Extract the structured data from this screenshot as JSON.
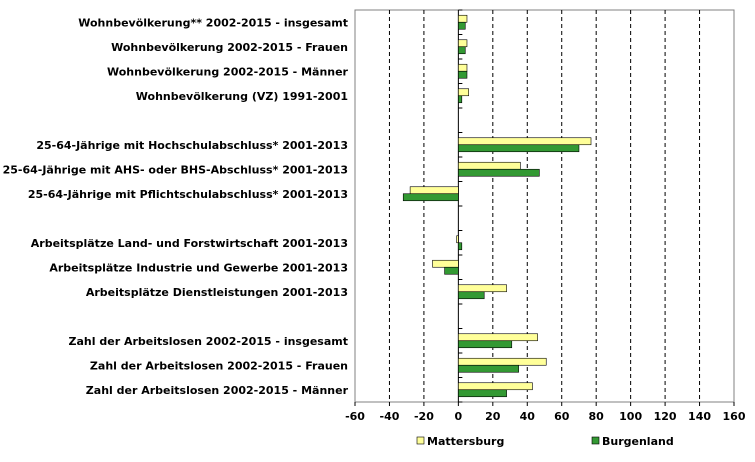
{
  "chart_data": {
    "type": "bar",
    "orientation": "horizontal",
    "categories": [
      "Wohnbevölkerung** 2002-2015 - insgesamt",
      "Wohnbevölkerung 2002-2015 - Frauen",
      "Wohnbevölkerung 2002-2015 - Männer",
      "Wohnbevölkerung (VZ) 1991-2001",
      "",
      "25-64-Jährige mit Hochschulabschluss* 2001-2013",
      "25-64-Jährige mit AHS- oder BHS-Abschluss* 2001-2013",
      "25-64-Jährige mit Pflichtschulabschluss* 2001-2013",
      "",
      "Arbeitsplätze Land- und Forstwirtschaft 2001-2013",
      "Arbeitsplätze Industrie und Gewerbe 2001-2013",
      "Arbeitsplätze Dienstleistungen 2001-2013",
      "",
      "Zahl der Arbeitslosen 2002-2015 - insgesamt",
      "Zahl der Arbeitslosen 2002-2015 - Frauen",
      "Zahl der Arbeitslosen 2002-2015 - Männer"
    ],
    "series": [
      {
        "name": "Mattersburg",
        "color": "#FFFF99",
        "values": [
          5,
          5,
          5,
          6,
          null,
          77,
          36,
          -28,
          null,
          -1,
          -15,
          28,
          null,
          46,
          51,
          43
        ]
      },
      {
        "name": "Burgenland",
        "color": "#339933",
        "values": [
          4,
          4,
          5,
          2,
          null,
          70,
          47,
          -32,
          null,
          2,
          -8,
          15,
          null,
          31,
          35,
          28
        ]
      }
    ],
    "xlim": [
      -60,
      160
    ],
    "xticks": [
      -60,
      -40,
      -20,
      0,
      20,
      40,
      60,
      80,
      100,
      120,
      140,
      160
    ],
    "grid": "vertical-dashed",
    "legend_position": "bottom",
    "title": "",
    "xlabel": "",
    "ylabel": ""
  }
}
